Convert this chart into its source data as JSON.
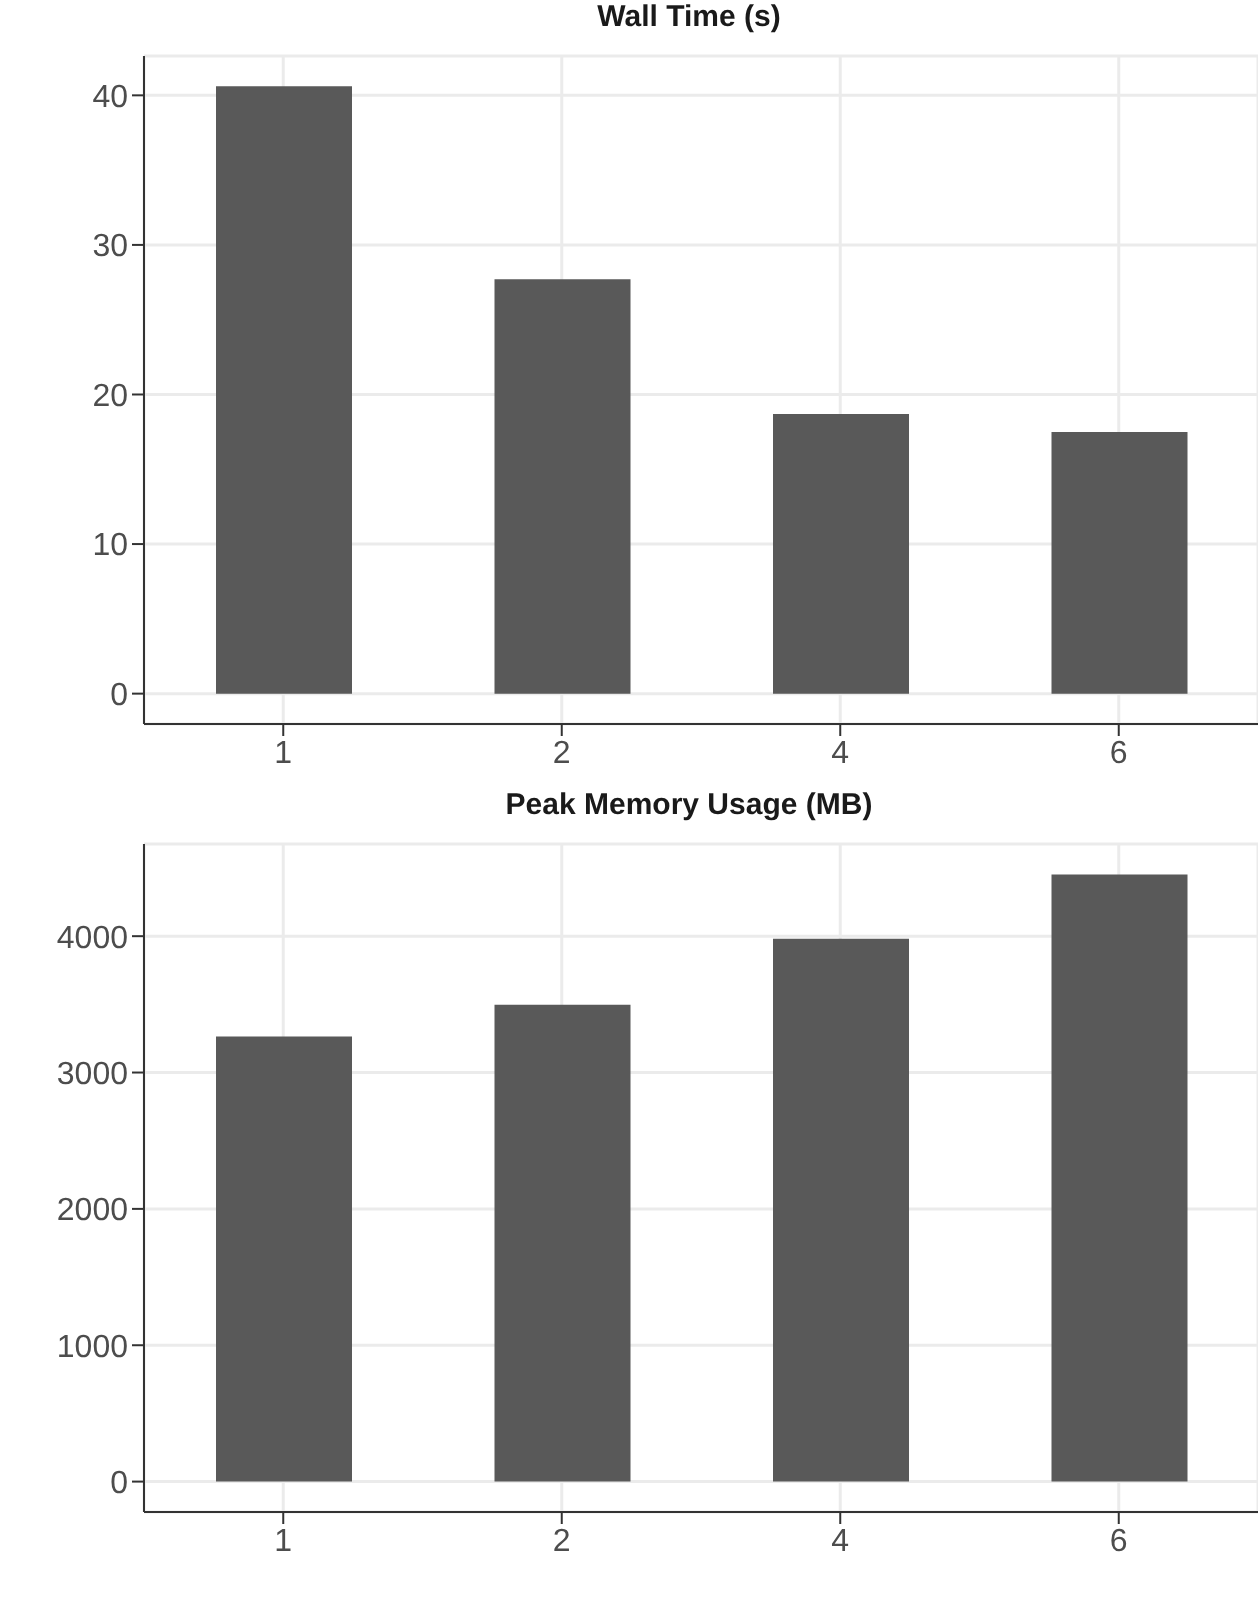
{
  "chart_data": [
    {
      "type": "bar",
      "title": "Wall Time (s)",
      "categories": [
        "1",
        "2",
        "4",
        "6"
      ],
      "values": [
        40.6,
        27.7,
        18.7,
        17.5
      ],
      "color": "#595959",
      "ylim": [
        -2.03,
        42.63
      ],
      "yticks": [
        0,
        10,
        20,
        30,
        40
      ],
      "grid": true
    },
    {
      "type": "bar",
      "title": "Peak Memory Usage (MB)",
      "categories": [
        "1",
        "2",
        "4",
        "6"
      ],
      "values": [
        3265,
        3498,
        3982,
        4453
      ],
      "color": "#595959",
      "ylim": [
        -223,
        4676
      ],
      "yticks": [
        0,
        1000,
        2000,
        3000,
        4000
      ],
      "grid": true
    }
  ]
}
